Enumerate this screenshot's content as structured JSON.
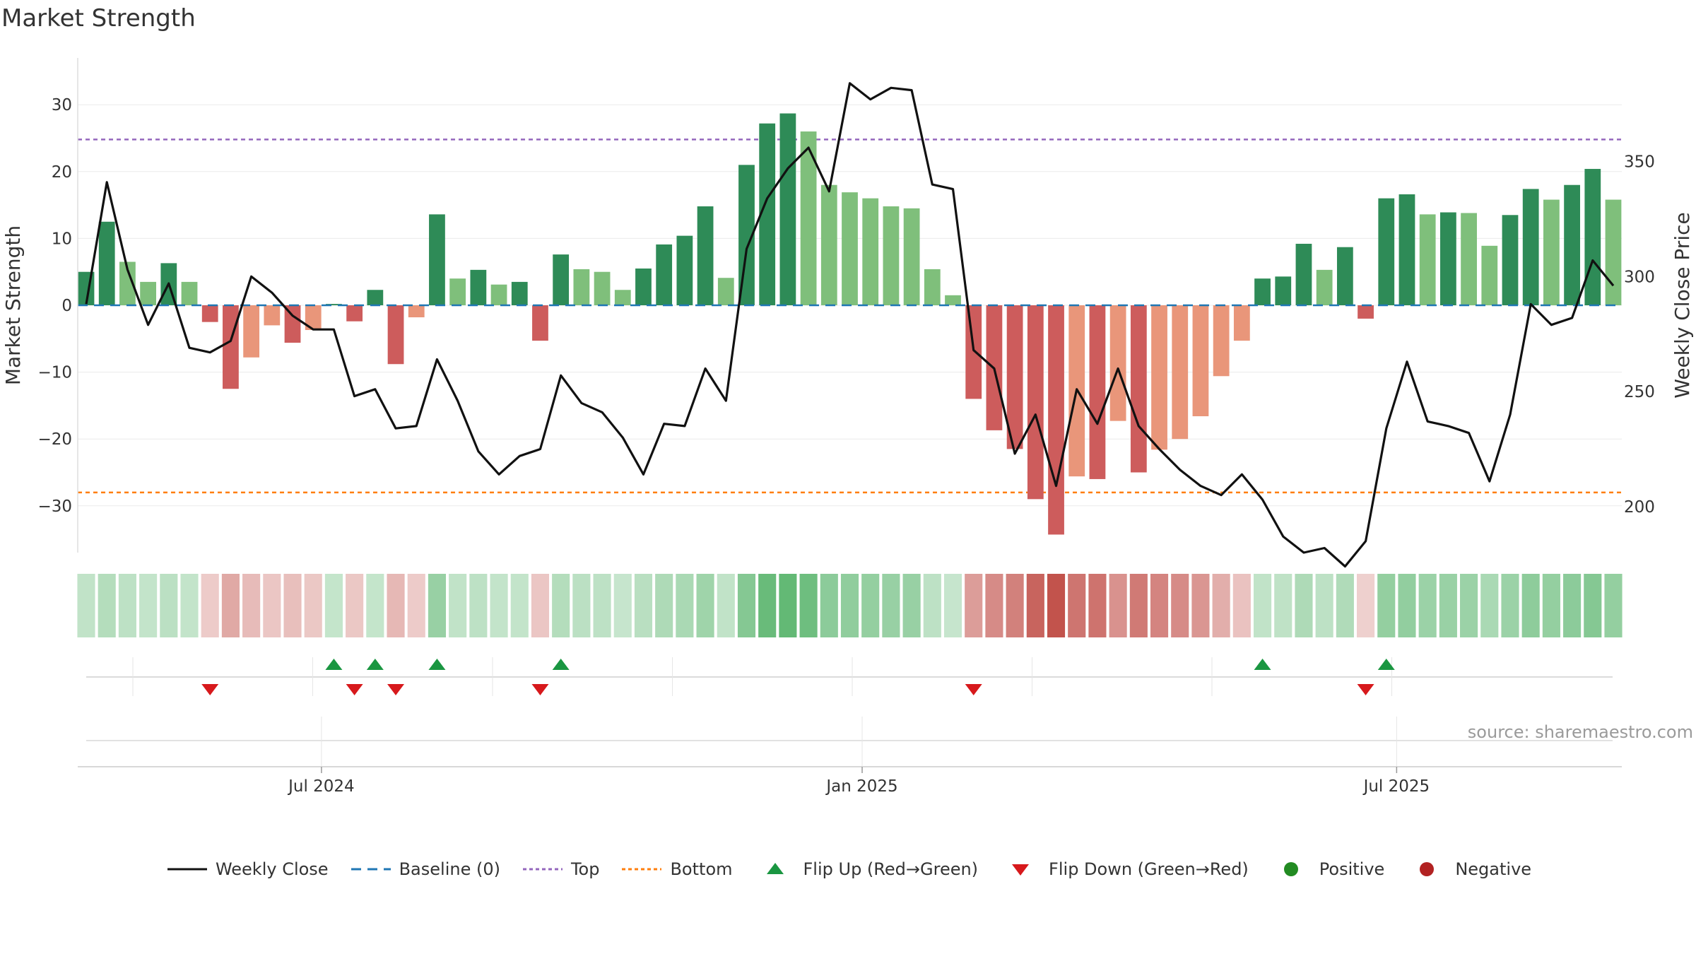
{
  "title": "Market Strength",
  "source": "source: sharemaestro.com",
  "colors": {
    "strong_green": "#2e8b57",
    "light_green": "#7fbf7b",
    "strong_red": "#cd5c5c",
    "light_red": "#e9967a",
    "close_line": "#111111",
    "baseline": "#1f77b4",
    "top": "#9467bd",
    "bottom": "#ff7f0e",
    "flip_up": "#1a9641",
    "flip_down": "#d7191c",
    "positive": "#228b22",
    "negative": "#b22222"
  },
  "legend": [
    {
      "key": "close",
      "label": "Weekly Close"
    },
    {
      "key": "baseline",
      "label": "Baseline (0)"
    },
    {
      "key": "top",
      "label": "Top"
    },
    {
      "key": "bottom",
      "label": "Bottom"
    },
    {
      "key": "flip_up",
      "label": "Flip Up (Red→Green)"
    },
    {
      "key": "flip_down",
      "label": "Flip Down (Green→Red)"
    },
    {
      "key": "positive",
      "label": "Positive"
    },
    {
      "key": "negative",
      "label": "Negative"
    }
  ],
  "chart_data": {
    "type": "bar",
    "title": "Market Strength",
    "ylabel": "Market Strength",
    "y2label": "Weekly Close Price",
    "ylim": [
      -37,
      37
    ],
    "y2lim": [
      180,
      395
    ],
    "yticks": [
      -30,
      -20,
      -10,
      0,
      10,
      20,
      30
    ],
    "y2ticks": [
      200,
      250,
      300,
      350
    ],
    "top_level": 24.8,
    "bottom_level": -28,
    "xticks": [
      {
        "label": "Jul 2024",
        "week": 11.4
      },
      {
        "label": "Jan 2025",
        "week": 37.6
      },
      {
        "label": "Jul 2025",
        "week": 63.5
      }
    ],
    "weeks": 75,
    "strength": [
      5,
      12.5,
      6.5,
      3.5,
      6.3,
      3.5,
      -2.5,
      -12.5,
      -7.8,
      -3,
      -5.6,
      -3.7,
      0.2,
      -2.4,
      2.3,
      -8.8,
      -1.8,
      13.6,
      4,
      5.3,
      3.1,
      3.5,
      -5.3,
      7.6,
      5.4,
      5,
      2.3,
      5.5,
      9.1,
      10.4,
      14.8,
      4.1,
      21,
      27.2,
      28.7,
      26,
      18,
      16.9,
      16,
      14.8,
      14.5,
      5.4,
      1.5,
      -14,
      -18.7,
      -21.5,
      -29,
      -34.3,
      -25.6,
      -26,
      -17.3,
      -25,
      -21.6,
      -20,
      -16.6,
      -10.6,
      -5.3,
      4,
      4.3,
      9.2,
      5.3,
      8.7,
      -2,
      16,
      16.6,
      13.6,
      13.9,
      13.8,
      8.9,
      13.5,
      17.4,
      15.8,
      18,
      20.4,
      15.8
    ],
    "shade": [
      "sg",
      "sg",
      "lg",
      "lg",
      "sg",
      "lg",
      "sr",
      "sr",
      "lr",
      "lr",
      "sr",
      "lr",
      "sg",
      "sr",
      "sg",
      "sr",
      "lr",
      "sg",
      "lg",
      "sg",
      "lg",
      "sg",
      "sr",
      "sg",
      "lg",
      "lg",
      "lg",
      "sg",
      "sg",
      "sg",
      "sg",
      "lg",
      "sg",
      "sg",
      "sg",
      "lg",
      "lg",
      "lg",
      "lg",
      "lg",
      "lg",
      "lg",
      "lg",
      "sr",
      "sr",
      "sr",
      "sr",
      "sr",
      "lr",
      "sr",
      "lr",
      "sr",
      "lr",
      "lr",
      "lr",
      "lr",
      "lr",
      "sg",
      "sg",
      "sg",
      "lg",
      "sg",
      "sr",
      "sg",
      "sg",
      "lg",
      "sg",
      "lg",
      "lg",
      "sg",
      "sg",
      "lg",
      "sg",
      "sg",
      "lg"
    ],
    "weekly_close": [
      288,
      341,
      303,
      279,
      297,
      269,
      267,
      272,
      300,
      293,
      283,
      277,
      277,
      248,
      251,
      234,
      235,
      264,
      246,
      224,
      214,
      222,
      225,
      257,
      245,
      241,
      230,
      214,
      236,
      235,
      260,
      246,
      312,
      334,
      347,
      356,
      337,
      384,
      377,
      382,
      381,
      340,
      338,
      268,
      260,
      223,
      240,
      209,
      251,
      236,
      260,
      235,
      225,
      216,
      209,
      205,
      214,
      203,
      187,
      180,
      182,
      174,
      185,
      234,
      263,
      237,
      235,
      232,
      211,
      240,
      288,
      279,
      282,
      307,
      296
    ],
    "flip_up_weeks": [
      12,
      14,
      17,
      23,
      57,
      63
    ],
    "flip_down_weeks": [
      6,
      13,
      15,
      22,
      43,
      62
    ],
    "heat_tone": [
      0.28,
      0.35,
      0.3,
      0.27,
      0.31,
      0.27,
      -0.25,
      -0.45,
      -0.34,
      -0.28,
      -0.32,
      -0.27,
      0.26,
      -0.27,
      0.26,
      -0.36,
      -0.25,
      0.5,
      0.28,
      0.3,
      0.27,
      0.27,
      -0.28,
      0.35,
      0.31,
      0.3,
      0.25,
      0.32,
      0.38,
      0.4,
      0.46,
      0.28,
      0.6,
      0.75,
      0.78,
      0.72,
      0.56,
      0.54,
      0.52,
      0.5,
      0.5,
      0.3,
      0.25,
      -0.52,
      -0.62,
      -0.68,
      -0.85,
      -0.95,
      -0.75,
      -0.76,
      -0.58,
      -0.72,
      -0.66,
      -0.62,
      -0.56,
      -0.42,
      -0.3,
      0.28,
      0.29,
      0.38,
      0.3,
      0.37,
      -0.22,
      0.52,
      0.53,
      0.48,
      0.49,
      0.48,
      0.4,
      0.48,
      0.55,
      0.52,
      0.56,
      0.6,
      0.52
    ]
  }
}
